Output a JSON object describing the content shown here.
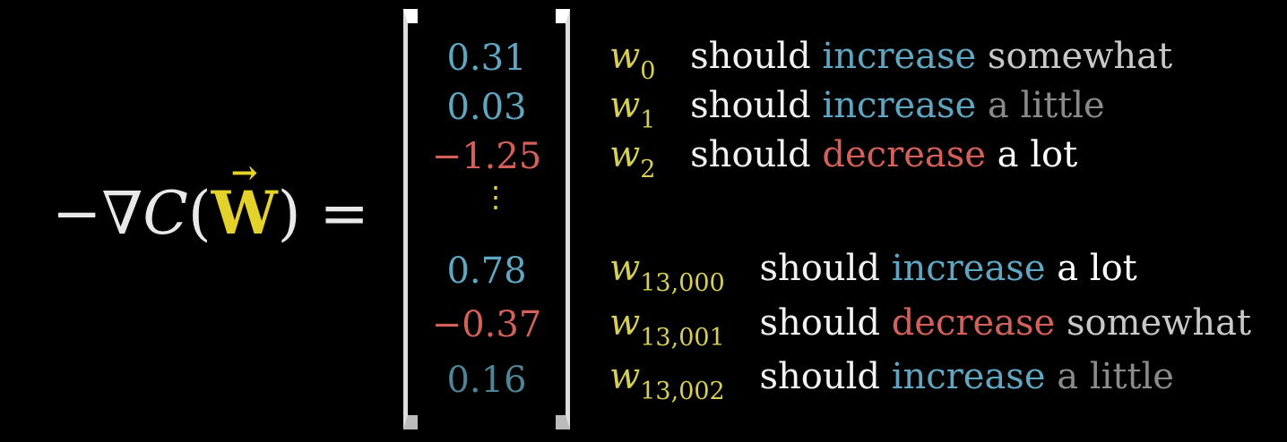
{
  "equation": {
    "minus": "−",
    "nabla": "∇",
    "func": "C",
    "open_paren": "(",
    "vector_symbol": "W",
    "vector_arrow": "→",
    "close_paren": ")",
    "equals": "="
  },
  "vector_entries": [
    {
      "value": "0.31",
      "color": "#5ea6c1"
    },
    {
      "value": "0.03",
      "color": "#5ea6c1"
    },
    {
      "value": "−1.25",
      "color": "#d4605a"
    },
    {
      "value": "0.78",
      "color": "#5ea6c1"
    },
    {
      "value": "−0.37",
      "color": "#d4605a"
    },
    {
      "value": "0.16",
      "color": "#4d8596"
    }
  ],
  "vdots": "⋮",
  "annotations": [
    {
      "w": "w",
      "sub": "0",
      "should": "should",
      "verb": "increase",
      "verb_type": "inc",
      "amount": "somewhat",
      "amount_color": "#c8c8c8"
    },
    {
      "w": "w",
      "sub": "1",
      "should": "should",
      "verb": "increase",
      "verb_type": "inc",
      "amount": "a little",
      "amount_color": "#8a8a8a"
    },
    {
      "w": "w",
      "sub": "2",
      "should": "should",
      "verb": "decrease",
      "verb_type": "dec",
      "amount": "a lot",
      "amount_color": "#ffffff"
    },
    {
      "w": "w",
      "sub": "13,000",
      "should": "should",
      "verb": "increase",
      "verb_type": "inc",
      "amount": "a lot",
      "amount_color": "#ffffff"
    },
    {
      "w": "w",
      "sub": "13,001",
      "should": "should",
      "verb": "decrease",
      "verb_type": "dec",
      "amount": "somewhat",
      "amount_color": "#c8c8c8"
    },
    {
      "w": "w",
      "sub": "13,002",
      "should": "should",
      "verb": "increase",
      "verb_type": "inc",
      "amount": "a little",
      "amount_color": "#8a8a8a"
    }
  ],
  "colors": {
    "background": "#000000",
    "weight_label": "#d7cf52",
    "increase": "#5ea6c1",
    "decrease": "#d4605a",
    "vector_symbol": "#e3d22a"
  }
}
